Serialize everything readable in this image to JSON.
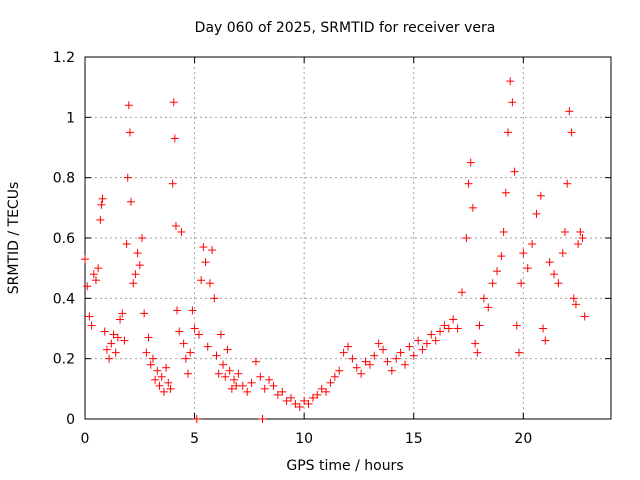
{
  "chart_data": {
    "type": "scatter",
    "title": "Day 060 of 2025, SRMTID for receiver vera",
    "xlabel": "GPS time / hours",
    "ylabel": "SRMTID / TECUs",
    "xlim": [
      0,
      24
    ],
    "ylim": [
      0,
      1.2
    ],
    "x_ticks": [
      0,
      5,
      10,
      15,
      20
    ],
    "x_tick_labels": [
      "0",
      "5",
      "10",
      "15",
      "20"
    ],
    "y_ticks": [
      0,
      0.2,
      0.4,
      0.6,
      0.8,
      1.0,
      1.2
    ],
    "y_tick_labels": [
      "0",
      "0.2",
      "0.4",
      "0.6",
      "0.8",
      "1",
      "1.2"
    ],
    "grid": true,
    "marker": "+",
    "series": [
      {
        "name": "SRMTID",
        "color": "#ff0000",
        "points": [
          [
            0.0,
            0.53
          ],
          [
            0.1,
            0.44
          ],
          [
            0.2,
            0.34
          ],
          [
            0.3,
            0.31
          ],
          [
            0.4,
            0.48
          ],
          [
            0.5,
            0.46
          ],
          [
            0.6,
            0.5
          ],
          [
            0.7,
            0.66
          ],
          [
            0.75,
            0.71
          ],
          [
            0.8,
            0.73
          ],
          [
            0.9,
            0.29
          ],
          [
            1.0,
            0.23
          ],
          [
            1.1,
            0.2
          ],
          [
            1.2,
            0.25
          ],
          [
            1.3,
            0.28
          ],
          [
            1.4,
            0.22
          ],
          [
            1.5,
            0.27
          ],
          [
            1.6,
            0.33
          ],
          [
            1.7,
            0.35
          ],
          [
            1.8,
            0.26
          ],
          [
            1.9,
            0.58
          ],
          [
            1.95,
            0.8
          ],
          [
            2.0,
            1.04
          ],
          [
            2.05,
            0.95
          ],
          [
            2.1,
            0.72
          ],
          [
            2.2,
            0.45
          ],
          [
            2.3,
            0.48
          ],
          [
            2.4,
            0.55
          ],
          [
            2.5,
            0.51
          ],
          [
            2.6,
            0.6
          ],
          [
            2.7,
            0.35
          ],
          [
            2.8,
            0.22
          ],
          [
            2.9,
            0.27
          ],
          [
            3.0,
            0.18
          ],
          [
            3.1,
            0.2
          ],
          [
            3.2,
            0.13
          ],
          [
            3.3,
            0.16
          ],
          [
            3.4,
            0.11
          ],
          [
            3.5,
            0.14
          ],
          [
            3.6,
            0.09
          ],
          [
            3.7,
            0.17
          ],
          [
            3.8,
            0.12
          ],
          [
            3.9,
            0.1
          ],
          [
            4.0,
            0.78
          ],
          [
            4.05,
            1.05
          ],
          [
            4.1,
            0.93
          ],
          [
            4.15,
            0.64
          ],
          [
            4.2,
            0.36
          ],
          [
            4.3,
            0.29
          ],
          [
            4.4,
            0.62
          ],
          [
            4.5,
            0.25
          ],
          [
            4.6,
            0.2
          ],
          [
            4.7,
            0.15
          ],
          [
            4.8,
            0.22
          ],
          [
            4.9,
            0.36
          ],
          [
            5.0,
            0.3
          ],
          [
            5.1,
            0.0
          ],
          [
            5.2,
            0.28
          ],
          [
            5.3,
            0.46
          ],
          [
            5.4,
            0.57
          ],
          [
            5.5,
            0.52
          ],
          [
            5.6,
            0.24
          ],
          [
            5.7,
            0.45
          ],
          [
            5.8,
            0.56
          ],
          [
            5.9,
            0.4
          ],
          [
            6.0,
            0.21
          ],
          [
            6.1,
            0.15
          ],
          [
            6.2,
            0.28
          ],
          [
            6.3,
            0.18
          ],
          [
            6.4,
            0.14
          ],
          [
            6.5,
            0.23
          ],
          [
            6.6,
            0.16
          ],
          [
            6.7,
            0.1
          ],
          [
            6.8,
            0.13
          ],
          [
            6.9,
            0.11
          ],
          [
            7.0,
            0.15
          ],
          [
            7.2,
            0.11
          ],
          [
            7.4,
            0.09
          ],
          [
            7.6,
            0.12
          ],
          [
            7.8,
            0.19
          ],
          [
            8.0,
            0.14
          ],
          [
            8.1,
            0.0
          ],
          [
            8.2,
            0.1
          ],
          [
            8.4,
            0.13
          ],
          [
            8.6,
            0.11
          ],
          [
            8.8,
            0.08
          ],
          [
            9.0,
            0.09
          ],
          [
            9.2,
            0.06
          ],
          [
            9.4,
            0.07
          ],
          [
            9.6,
            0.05
          ],
          [
            9.8,
            0.04
          ],
          [
            10.0,
            0.06
          ],
          [
            10.2,
            0.05
          ],
          [
            10.4,
            0.07
          ],
          [
            10.6,
            0.08
          ],
          [
            10.8,
            0.1
          ],
          [
            11.0,
            0.09
          ],
          [
            11.2,
            0.12
          ],
          [
            11.4,
            0.14
          ],
          [
            11.6,
            0.16
          ],
          [
            11.8,
            0.22
          ],
          [
            12.0,
            0.24
          ],
          [
            12.2,
            0.2
          ],
          [
            12.4,
            0.17
          ],
          [
            12.6,
            0.15
          ],
          [
            12.8,
            0.19
          ],
          [
            13.0,
            0.18
          ],
          [
            13.2,
            0.21
          ],
          [
            13.4,
            0.25
          ],
          [
            13.6,
            0.23
          ],
          [
            13.8,
            0.19
          ],
          [
            14.0,
            0.16
          ],
          [
            14.2,
            0.2
          ],
          [
            14.4,
            0.22
          ],
          [
            14.6,
            0.18
          ],
          [
            14.8,
            0.24
          ],
          [
            15.0,
            0.21
          ],
          [
            15.2,
            0.26
          ],
          [
            15.4,
            0.23
          ],
          [
            15.6,
            0.25
          ],
          [
            15.8,
            0.28
          ],
          [
            16.0,
            0.26
          ],
          [
            16.2,
            0.29
          ],
          [
            16.4,
            0.31
          ],
          [
            16.6,
            0.3
          ],
          [
            16.8,
            0.33
          ],
          [
            17.0,
            0.3
          ],
          [
            17.2,
            0.42
          ],
          [
            17.4,
            0.6
          ],
          [
            17.5,
            0.78
          ],
          [
            17.6,
            0.85
          ],
          [
            17.7,
            0.7
          ],
          [
            17.8,
            0.25
          ],
          [
            17.9,
            0.22
          ],
          [
            18.0,
            0.31
          ],
          [
            18.2,
            0.4
          ],
          [
            18.4,
            0.37
          ],
          [
            18.6,
            0.45
          ],
          [
            18.8,
            0.49
          ],
          [
            19.0,
            0.54
          ],
          [
            19.1,
            0.62
          ],
          [
            19.2,
            0.75
          ],
          [
            19.3,
            0.95
          ],
          [
            19.4,
            1.12
          ],
          [
            19.5,
            1.05
          ],
          [
            19.6,
            0.82
          ],
          [
            19.7,
            0.31
          ],
          [
            19.8,
            0.22
          ],
          [
            19.9,
            0.45
          ],
          [
            20.0,
            0.55
          ],
          [
            20.2,
            0.5
          ],
          [
            20.4,
            0.58
          ],
          [
            20.6,
            0.68
          ],
          [
            20.8,
            0.74
          ],
          [
            20.9,
            0.3
          ],
          [
            21.0,
            0.26
          ],
          [
            21.2,
            0.52
          ],
          [
            21.4,
            0.48
          ],
          [
            21.6,
            0.45
          ],
          [
            21.8,
            0.55
          ],
          [
            21.9,
            0.62
          ],
          [
            22.0,
            0.78
          ],
          [
            22.1,
            1.02
          ],
          [
            22.2,
            0.95
          ],
          [
            22.3,
            0.4
          ],
          [
            22.4,
            0.38
          ],
          [
            22.5,
            0.58
          ],
          [
            22.6,
            0.62
          ],
          [
            22.7,
            0.6
          ],
          [
            22.8,
            0.34
          ]
        ]
      }
    ]
  }
}
